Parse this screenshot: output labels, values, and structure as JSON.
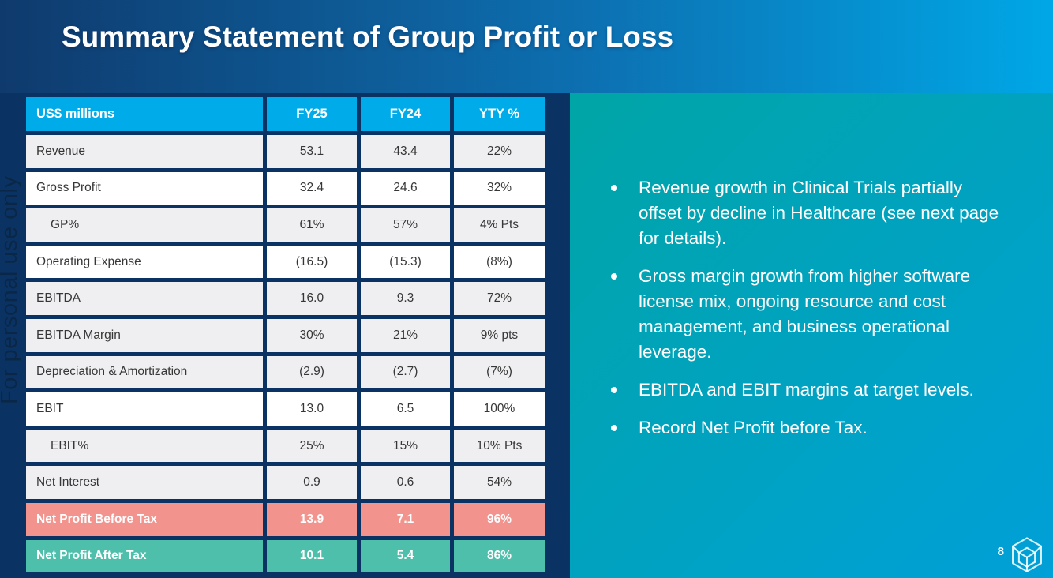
{
  "slide": {
    "title": "Summary Statement of Group Profit or Loss",
    "watermark": "For personal use only",
    "page_number": "8"
  },
  "colors": {
    "header_blue": "#00abe9",
    "navy_panel": "#0a3364",
    "row_gray": "#efeff1",
    "row_white": "#ffffff",
    "net_profit_before_tax_red": "#f2938d",
    "net_profit_after_tax_green": "#4ebfab",
    "title_band_left": "#0f3a6d",
    "title_band_right": "#00a7e6",
    "right_panel_teal": "#00a5a6",
    "right_panel_blue": "#00a0d8"
  },
  "table": {
    "headers": [
      "US$ millions",
      "FY25",
      "FY24",
      "YTY %"
    ],
    "rows": [
      {
        "label": "Revenue",
        "fy25": "53.1",
        "fy24": "43.4",
        "yty": "22%",
        "style": "gray",
        "indent": false
      },
      {
        "label": "Gross Profit",
        "fy25": "32.4",
        "fy24": "24.6",
        "yty": "32%",
        "style": "white",
        "indent": false
      },
      {
        "label": "GP%",
        "fy25": "61%",
        "fy24": "57%",
        "yty": "4% Pts",
        "style": "gray",
        "indent": true
      },
      {
        "label": "Operating Expense",
        "fy25": "(16.5)",
        "fy24": "(15.3)",
        "yty": "(8%)",
        "style": "white",
        "indent": false
      },
      {
        "label": "EBITDA",
        "fy25": "16.0",
        "fy24": "9.3",
        "yty": "72%",
        "style": "gray",
        "indent": false
      },
      {
        "label": "EBITDA Margin",
        "fy25": "30%",
        "fy24": "21%",
        "yty": "9% pts",
        "style": "gray",
        "indent": false
      },
      {
        "label": "Depreciation & Amortization",
        "fy25": "(2.9)",
        "fy24": "(2.7)",
        "yty": "(7%)",
        "style": "gray",
        "indent": false
      },
      {
        "label": "EBIT",
        "fy25": "13.0",
        "fy24": "6.5",
        "yty": "100%",
        "style": "white",
        "indent": false
      },
      {
        "label": "EBIT%",
        "fy25": "25%",
        "fy24": "15%",
        "yty": "10% Pts",
        "style": "gray",
        "indent": true
      },
      {
        "label": "Net Interest",
        "fy25": "0.9",
        "fy24": "0.6",
        "yty": "54%",
        "style": "gray",
        "indent": false
      },
      {
        "label": "Net Profit Before Tax",
        "fy25": "13.9",
        "fy24": "7.1",
        "yty": "96%",
        "style": "red",
        "indent": false
      },
      {
        "label": "Net Profit After Tax",
        "fy25": "10.1",
        "fy24": "5.4",
        "yty": "86%",
        "style": "green",
        "indent": false
      }
    ]
  },
  "bullets": [
    "Revenue growth in Clinical Trials partially offset by decline in Healthcare (see next page for details).",
    "Gross margin growth from higher software license mix, ongoing resource and cost management, and business operational leverage.",
    "EBITDA and EBIT margins at target levels.",
    "Record Net Profit before Tax."
  ]
}
